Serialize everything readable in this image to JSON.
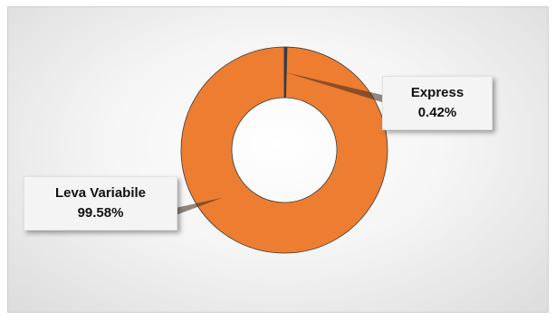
{
  "chart_data": {
    "type": "pie",
    "variant": "donut",
    "title": "",
    "slices": [
      {
        "label": "Express",
        "value": 0.42,
        "value_label": "0.42%",
        "color": "#2e4057"
      },
      {
        "label": "Leva Variabile",
        "value": 99.58,
        "value_label": "99.58%",
        "color": "#ed7d31"
      }
    ],
    "legend": "none",
    "data_labels": "callouts"
  }
}
